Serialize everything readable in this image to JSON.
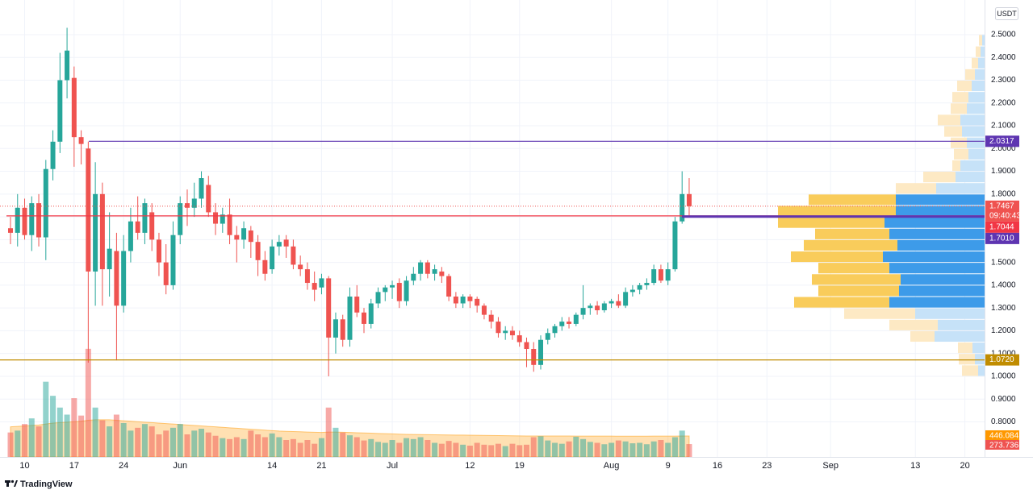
{
  "chart_data": {
    "type": "candlestick",
    "quote": "USDT",
    "x": [
      "05-08",
      "05-09",
      "05-10",
      "05-11",
      "05-12",
      "05-13",
      "05-14",
      "05-15",
      "05-16",
      "05-17",
      "05-18",
      "05-19",
      "05-20",
      "05-21",
      "05-22",
      "05-23",
      "05-24",
      "05-25",
      "05-26",
      "05-27",
      "05-28",
      "05-29",
      "05-30",
      "05-31",
      "06-01",
      "06-02",
      "06-03",
      "06-04",
      "06-05",
      "06-06",
      "06-07",
      "06-08",
      "06-09",
      "06-10",
      "06-11",
      "06-12",
      "06-13",
      "06-14",
      "06-15",
      "06-16",
      "06-17",
      "06-18",
      "06-19",
      "06-20",
      "06-21",
      "06-22",
      "06-23",
      "06-24",
      "06-25",
      "06-26",
      "06-27",
      "06-28",
      "06-29",
      "06-30",
      "07-01",
      "07-02",
      "07-03",
      "07-04",
      "07-05",
      "07-06",
      "07-07",
      "07-08",
      "07-09",
      "07-10",
      "07-11",
      "07-12",
      "07-13",
      "07-14",
      "07-15",
      "07-16",
      "07-17",
      "07-18",
      "07-19",
      "07-20",
      "07-21",
      "07-22",
      "07-23",
      "07-24",
      "07-25",
      "07-26",
      "07-27",
      "07-28",
      "07-29",
      "07-30",
      "07-31",
      "08-01",
      "08-02",
      "08-03",
      "08-04",
      "08-05",
      "08-06",
      "08-07",
      "08-08",
      "08-09",
      "08-10",
      "08-11",
      "08-12"
    ],
    "open": [
      1.65,
      1.63,
      1.74,
      1.62,
      1.76,
      1.61,
      1.91,
      2.03,
      2.3,
      2.31,
      2.05,
      2.0,
      1.46,
      1.8,
      1.47,
      1.55,
      1.31,
      1.55,
      1.68,
      1.63,
      1.72,
      1.6,
      1.5,
      1.4,
      1.62,
      1.76,
      1.74,
      1.78,
      1.84,
      1.72,
      1.67,
      1.71,
      1.62,
      1.6,
      1.64,
      1.59,
      1.51,
      1.47,
      1.57,
      1.6,
      1.57,
      1.49,
      1.47,
      1.41,
      1.39,
      1.43,
      1.17,
      1.25,
      1.16,
      1.35,
      1.28,
      1.23,
      1.32,
      1.37,
      1.39,
      1.41,
      1.33,
      1.42,
      1.45,
      1.5,
      1.45,
      1.46,
      1.44,
      1.35,
      1.32,
      1.35,
      1.34,
      1.31,
      1.27,
      1.24,
      1.19,
      1.2,
      1.18,
      1.15,
      1.12,
      1.05,
      1.16,
      1.19,
      1.22,
      1.24,
      1.23,
      1.27,
      1.3,
      1.31,
      1.29,
      1.32,
      1.33,
      1.31,
      1.37,
      1.38,
      1.4,
      1.41,
      1.47,
      1.42,
      1.47,
      1.68,
      1.8
    ],
    "high": [
      1.7,
      1.8,
      1.78,
      1.79,
      1.8,
      1.95,
      2.08,
      2.42,
      2.53,
      2.36,
      2.08,
      2.03,
      1.94,
      1.85,
      1.72,
      1.63,
      1.62,
      1.74,
      1.79,
      1.78,
      1.76,
      1.63,
      1.58,
      1.68,
      1.79,
      1.82,
      1.85,
      1.9,
      1.88,
      1.76,
      1.74,
      1.78,
      1.66,
      1.68,
      1.66,
      1.62,
      1.55,
      1.6,
      1.62,
      1.62,
      1.6,
      1.53,
      1.5,
      1.46,
      1.45,
      1.44,
      1.28,
      1.27,
      1.39,
      1.4,
      1.3,
      1.34,
      1.39,
      1.4,
      1.42,
      1.43,
      1.44,
      1.48,
      1.51,
      1.51,
      1.49,
      1.48,
      1.45,
      1.37,
      1.36,
      1.36,
      1.35,
      1.32,
      1.29,
      1.26,
      1.22,
      1.22,
      1.2,
      1.17,
      1.15,
      1.18,
      1.21,
      1.23,
      1.26,
      1.26,
      1.28,
      1.4,
      1.32,
      1.33,
      1.33,
      1.34,
      1.36,
      1.39,
      1.4,
      1.41,
      1.43,
      1.49,
      1.49,
      1.5,
      1.7,
      1.9,
      1.87
    ],
    "low": [
      1.58,
      1.57,
      1.6,
      1.55,
      1.57,
      1.51,
      1.86,
      1.98,
      2.22,
      1.92,
      1.93,
      1.06,
      1.31,
      1.31,
      1.35,
      1.07,
      1.28,
      1.5,
      1.6,
      1.58,
      1.55,
      1.44,
      1.36,
      1.38,
      1.58,
      1.66,
      1.7,
      1.74,
      1.7,
      1.62,
      1.63,
      1.58,
      1.5,
      1.56,
      1.52,
      1.44,
      1.42,
      1.45,
      1.53,
      1.52,
      1.47,
      1.44,
      1.38,
      1.33,
      1.36,
      1.0,
      1.1,
      1.13,
      1.13,
      1.26,
      1.19,
      1.21,
      1.3,
      1.33,
      1.34,
      1.3,
      1.31,
      1.4,
      1.42,
      1.43,
      1.42,
      1.41,
      1.33,
      1.3,
      1.3,
      1.3,
      1.28,
      1.25,
      1.21,
      1.17,
      1.16,
      1.16,
      1.13,
      1.04,
      1.02,
      1.03,
      1.14,
      1.17,
      1.2,
      1.21,
      1.22,
      1.25,
      1.27,
      1.27,
      1.28,
      1.3,
      1.3,
      1.3,
      1.35,
      1.36,
      1.38,
      1.4,
      1.41,
      1.4,
      1.46,
      1.67,
      1.7
    ],
    "close": [
      1.63,
      1.74,
      1.62,
      1.76,
      1.61,
      1.91,
      2.03,
      2.3,
      2.43,
      2.05,
      2.02,
      1.46,
      1.8,
      1.47,
      1.56,
      1.31,
      1.55,
      1.68,
      1.63,
      1.76,
      1.6,
      1.5,
      1.4,
      1.62,
      1.76,
      1.74,
      1.78,
      1.87,
      1.72,
      1.67,
      1.71,
      1.62,
      1.6,
      1.65,
      1.59,
      1.51,
      1.45,
      1.57,
      1.59,
      1.57,
      1.49,
      1.47,
      1.41,
      1.38,
      1.43,
      1.17,
      1.25,
      1.16,
      1.35,
      1.28,
      1.23,
      1.32,
      1.37,
      1.39,
      1.4,
      1.33,
      1.42,
      1.45,
      1.5,
      1.45,
      1.47,
      1.44,
      1.35,
      1.32,
      1.35,
      1.33,
      1.31,
      1.27,
      1.24,
      1.19,
      1.2,
      1.18,
      1.15,
      1.12,
      1.05,
      1.16,
      1.19,
      1.22,
      1.24,
      1.23,
      1.27,
      1.3,
      1.31,
      1.29,
      1.32,
      1.33,
      1.31,
      1.37,
      1.38,
      1.4,
      1.41,
      1.47,
      1.42,
      1.47,
      1.68,
      1.8,
      1.7467
    ],
    "up_color": "#26a69a",
    "down_color": "#ef5350",
    "volume": [
      520,
      560,
      700,
      820,
      650,
      1600,
      1300,
      1050,
      900,
      1250,
      880,
      2300,
      1050,
      780,
      650,
      900,
      720,
      560,
      620,
      700,
      650,
      480,
      560,
      620,
      700,
      480,
      560,
      600,
      520,
      450,
      400,
      380,
      420,
      380,
      560,
      480,
      420,
      500,
      420,
      360,
      380,
      300,
      360,
      280,
      400,
      1050,
      620,
      520,
      460,
      420,
      350,
      380,
      320,
      300,
      360,
      300,
      400,
      380,
      420,
      360,
      300,
      280,
      340,
      300,
      260,
      240,
      300,
      260,
      250,
      280,
      230,
      280,
      250,
      260,
      420,
      440,
      350,
      300,
      280,
      330,
      430,
      380,
      320,
      300,
      270,
      300,
      350,
      330,
      290,
      300,
      270,
      330,
      360,
      300,
      420,
      560,
      273.736
    ],
    "volume_label": "273.736M",
    "volume_ylim": [
      0,
      2400
    ],
    "volume_ma": [
      640,
      650,
      660,
      670,
      680,
      700,
      720,
      730,
      740,
      750,
      760,
      780,
      790,
      790,
      790,
      780,
      770,
      760,
      750,
      740,
      730,
      720,
      710,
      700,
      690,
      680,
      670,
      660,
      650,
      640,
      630,
      620,
      610,
      600,
      590,
      580,
      570,
      560,
      550,
      545,
      540,
      535,
      530,
      525,
      520,
      530,
      530,
      525,
      520,
      515,
      510,
      505,
      500,
      495,
      490,
      485,
      480,
      478,
      476,
      474,
      472,
      470,
      468,
      466,
      464,
      462,
      460,
      458,
      456,
      454,
      452,
      450,
      448,
      446,
      446,
      446,
      446,
      446,
      445,
      445,
      444,
      444,
      444,
      443,
      443,
      443,
      442,
      442,
      442,
      442,
      442,
      443,
      443,
      443,
      444,
      445,
      446.084
    ],
    "volume_ma_label": "446.084M",
    "volume_ma_color": "#ff9800",
    "volume_profile": {
      "bins": [
        1.0,
        1.05,
        1.1,
        1.15,
        1.2,
        1.25,
        1.3,
        1.35,
        1.4,
        1.45,
        1.5,
        1.55,
        1.6,
        1.65,
        1.7,
        1.75,
        1.8,
        1.85,
        1.9,
        1.95,
        2.0,
        2.05,
        2.1,
        2.15,
        2.2,
        2.25,
        2.3,
        2.35,
        2.4,
        2.45,
        2.5
      ],
      "up": [
        8,
        12,
        15,
        62,
        58,
        86,
        118,
        106,
        104,
        118,
        126,
        108,
        118,
        124,
        110,
        110,
        60,
        36,
        30,
        20,
        22,
        28,
        30,
        22,
        20,
        16,
        12,
        8,
        5,
        3
      ],
      "down": [
        20,
        20,
        18,
        30,
        60,
        88,
        118,
        100,
        110,
        88,
        114,
        116,
        92,
        132,
        146,
        108,
        50,
        40,
        10,
        18,
        20,
        22,
        28,
        20,
        20,
        18,
        12,
        8,
        6,
        4
      ],
      "value_area": [
        1.3,
        1.8
      ],
      "xlim": [
        0,
        260
      ],
      "up_color": "#3d9be9",
      "down_color": "#f9cc5b",
      "up_color_light": "#c6e2f8",
      "down_color_light": "#fde9c4"
    },
    "hlines": [
      {
        "value": 2.0317,
        "label": "2.0317",
        "color": "#5e35b1"
      },
      {
        "value": 1.7044,
        "label": "1.7044",
        "color": "#f23645"
      },
      {
        "value": 1.701,
        "label": "1.7010",
        "color": "#5e35b1"
      },
      {
        "value": 1.072,
        "label": "1.0720",
        "color": "#c08c00"
      }
    ],
    "last_price": {
      "value": 1.7467,
      "label": "1.7467",
      "countdown": "09:40:43",
      "color": "#ef5350"
    },
    "ylim": [
      0.646,
      2.652
    ],
    "yticks": [
      {
        "value": 0.8,
        "label": "0.8000"
      },
      {
        "value": 0.9,
        "label": "0.9000"
      },
      {
        "value": 1.0,
        "label": "1.0000"
      },
      {
        "value": 1.1,
        "label": "1.1000"
      },
      {
        "value": 1.2,
        "label": "1.2000"
      },
      {
        "value": 1.3,
        "label": "1.3000"
      },
      {
        "value": 1.4,
        "label": "1.4000"
      },
      {
        "value": 1.5,
        "label": "1.5000"
      },
      {
        "value": 1.6,
        "label": "1.6000"
      },
      {
        "value": 1.7,
        "label": "1.7000"
      },
      {
        "value": 1.8,
        "label": "1.8000"
      },
      {
        "value": 1.9,
        "label": "1.9000"
      },
      {
        "value": 2.0,
        "label": "2.0000"
      },
      {
        "value": 2.1,
        "label": "2.1000"
      },
      {
        "value": 2.2,
        "label": "2.2000"
      },
      {
        "value": 2.3,
        "label": "2.3000"
      },
      {
        "value": 2.4,
        "label": "2.4000"
      },
      {
        "value": 2.5,
        "label": "2.5000"
      }
    ],
    "xticks": [
      {
        "value": "05-10",
        "label": "10"
      },
      {
        "value": "05-17",
        "label": "17"
      },
      {
        "value": "05-24",
        "label": "24"
      },
      {
        "value": "06-01",
        "label": "Jun"
      },
      {
        "value": "06-14",
        "label": "14"
      },
      {
        "value": "06-21",
        "label": "21"
      },
      {
        "value": "07-01",
        "label": "Jul"
      },
      {
        "value": "07-12",
        "label": "12"
      },
      {
        "value": "07-19",
        "label": "19"
      },
      {
        "value": "08-01",
        "label": "Aug"
      },
      {
        "value": "08-09",
        "label": "9"
      },
      {
        "value": "08-16",
        "label": "16"
      },
      {
        "value": "08-23",
        "label": "23"
      },
      {
        "value": "09-01",
        "label": "Sep"
      },
      {
        "value": "09-13",
        "label": "13"
      },
      {
        "value": "09-20",
        "label": "20"
      }
    ],
    "grid": true
  },
  "watermark": "TradingView"
}
